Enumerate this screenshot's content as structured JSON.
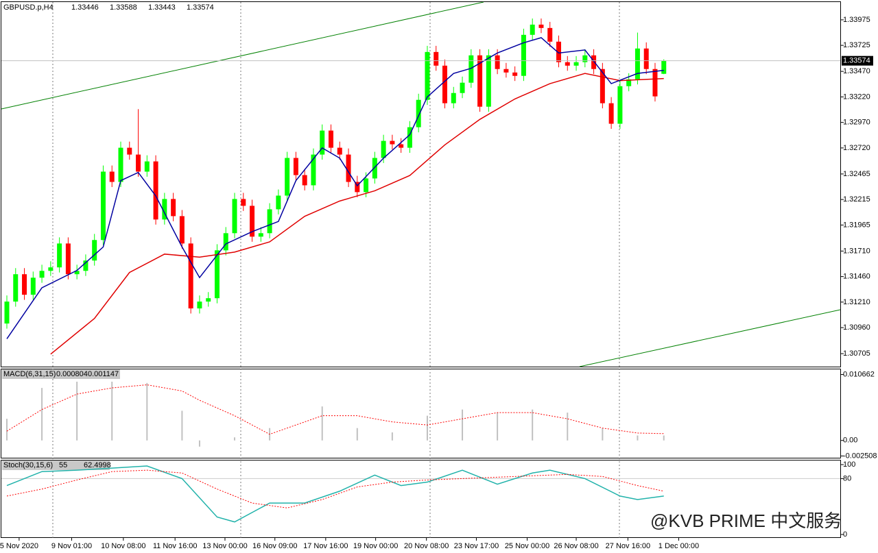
{
  "chart_data": {
    "type": "candlestick",
    "title": "GBPUSD.p,H4",
    "open": [
      1.31,
      1.31215,
      1.31483,
      1.31282,
      1.31449,
      1.31516,
      1.3155,
      1.31784,
      1.31483,
      1.31516,
      1.31617,
      1.31818,
      1.32488,
      1.32387,
      1.32722,
      1.32655,
      1.32488,
      1.32588,
      1.32019,
      1.3222,
      1.32052,
      1.31784,
      1.31148,
      1.31215,
      1.31248,
      1.31717,
      1.31885,
      1.3222,
      1.32153,
      1.31851,
      1.31885,
      1.32119,
      1.32253,
      1.32622,
      1.32454,
      1.32354,
      1.32655,
      1.3289,
      1.32722,
      1.32655,
      1.32387,
      1.32287,
      1.32421,
      1.32622,
      1.32789,
      1.32756,
      1.32722,
      1.32923,
      1.33191,
      1.3366,
      1.33526,
      1.33158,
      1.33258,
      1.33359,
      1.33627,
      1.33124,
      1.33627,
      1.33493,
      1.33459,
      1.33426,
      1.33828,
      1.33928,
      1.33895,
      1.33761,
      1.3356,
      1.33526,
      1.3356,
      1.33627,
      1.33493,
      1.33158,
      1.32957,
      1.33325,
      1.33392,
      1.33694,
      1.33493,
      1.33446
    ],
    "high": [
      1.31275,
      1.31543,
      1.31543,
      1.31509,
      1.31576,
      1.3161,
      1.31844,
      1.31844,
      1.31576,
      1.31677,
      1.31878,
      1.32548,
      1.32548,
      1.32782,
      1.32782,
      1.331,
      1.32648,
      1.32648,
      1.3228,
      1.3228,
      1.32112,
      1.31844,
      1.31275,
      1.31308,
      1.31777,
      1.31945,
      1.3228,
      1.3228,
      1.32213,
      1.31945,
      1.32179,
      1.32313,
      1.32682,
      1.32682,
      1.32514,
      1.32715,
      1.3295,
      1.3295,
      1.32782,
      1.32715,
      1.32447,
      1.32481,
      1.32682,
      1.32849,
      1.32849,
      1.32816,
      1.32983,
      1.33251,
      1.3372,
      1.3372,
      1.33586,
      1.33318,
      1.33419,
      1.33687,
      1.33687,
      1.33687,
      1.33687,
      1.33553,
      1.33519,
      1.33888,
      1.33988,
      1.33988,
      1.33955,
      1.33821,
      1.3362,
      1.3362,
      1.33687,
      1.33687,
      1.33553,
      1.33218,
      1.33385,
      1.33452,
      1.3385,
      1.33754,
      1.33553,
      1.33588
    ],
    "low": [
      1.3095,
      1.31165,
      1.31232,
      1.31232,
      1.31399,
      1.31466,
      1.315,
      1.31433,
      1.31433,
      1.31466,
      1.31567,
      1.31768,
      1.32337,
      1.32337,
      1.32605,
      1.32438,
      1.32438,
      1.31969,
      1.31969,
      1.32002,
      1.31734,
      1.31098,
      1.31098,
      1.31165,
      1.31198,
      1.31667,
      1.31835,
      1.32103,
      1.31801,
      1.31801,
      1.31835,
      1.32069,
      1.32203,
      1.32404,
      1.32304,
      1.32304,
      1.32605,
      1.32672,
      1.32605,
      1.32337,
      1.32237,
      1.32237,
      1.32371,
      1.32572,
      1.32706,
      1.32672,
      1.32672,
      1.32873,
      1.33141,
      1.33476,
      1.33108,
      1.33108,
      1.33208,
      1.33309,
      1.33074,
      1.33074,
      1.33443,
      1.33409,
      1.33376,
      1.33376,
      1.33778,
      1.33845,
      1.33711,
      1.3351,
      1.33476,
      1.33476,
      1.3351,
      1.33443,
      1.33108,
      1.32907,
      1.32907,
      1.33275,
      1.33342,
      1.33443,
      1.33175,
      1.33443
    ],
    "close": [
      1.31215,
      1.31483,
      1.31282,
      1.31449,
      1.31516,
      1.3155,
      1.31784,
      1.31483,
      1.31516,
      1.31617,
      1.31818,
      1.32488,
      1.32387,
      1.32722,
      1.32655,
      1.32488,
      1.32588,
      1.32019,
      1.3222,
      1.32052,
      1.31784,
      1.31148,
      1.31215,
      1.31248,
      1.31717,
      1.31885,
      1.3222,
      1.32153,
      1.31851,
      1.31885,
      1.32119,
      1.32253,
      1.32622,
      1.32454,
      1.32354,
      1.32655,
      1.3289,
      1.32722,
      1.32655,
      1.32387,
      1.32287,
      1.32421,
      1.32622,
      1.32789,
      1.32756,
      1.32722,
      1.32923,
      1.33191,
      1.3366,
      1.33526,
      1.33158,
      1.33258,
      1.33359,
      1.33627,
      1.33124,
      1.33627,
      1.33493,
      1.33459,
      1.33426,
      1.33828,
      1.33928,
      1.33895,
      1.33761,
      1.3356,
      1.33526,
      1.3356,
      1.33627,
      1.33493,
      1.33158,
      1.32957,
      1.33325,
      1.33392,
      1.33694,
      1.33493,
      1.33225,
      1.33574
    ],
    "up_color": "#00ff00",
    "down_color": "#ff0000",
    "ma_fast": {
      "color": "#0000a0",
      "x": [
        0,
        4,
        8,
        11,
        13,
        15,
        17,
        20,
        22,
        25,
        28,
        31,
        33,
        36,
        38,
        40,
        43,
        46,
        48,
        51,
        53,
        56,
        59,
        61,
        63,
        66,
        69,
        72,
        75
      ],
      "values": [
        1.3085,
        1.3135,
        1.3152,
        1.3175,
        1.324,
        1.3248,
        1.3225,
        1.3175,
        1.3145,
        1.3178,
        1.319,
        1.32,
        1.324,
        1.3272,
        1.3262,
        1.3235,
        1.3262,
        1.3285,
        1.3322,
        1.3345,
        1.335,
        1.3365,
        1.3375,
        1.338,
        1.3365,
        1.3368,
        1.3335,
        1.3345,
        1.3348
      ]
    },
    "ma_slow": {
      "color": "#e00000",
      "x": [
        5,
        10,
        14,
        18,
        22,
        26,
        30,
        34,
        38,
        42,
        46,
        50,
        54,
        58,
        62,
        66,
        70,
        75
      ],
      "values": [
        1.307,
        1.3105,
        1.315,
        1.3168,
        1.3165,
        1.317,
        1.318,
        1.3205,
        1.322,
        1.323,
        1.3245,
        1.3275,
        1.33,
        1.332,
        1.3335,
        1.3345,
        1.3338,
        1.334
      ]
    },
    "ylim": [
      1.30578,
      1.34149
    ],
    "yticks": [
      1.33975,
      1.33725,
      {
        "value": 1.3347,
        "label": "1.33470"
      },
      {
        "value": 1.3322,
        "label": "1.33220"
      },
      {
        "value": 1.3297,
        "label": "1.32970"
      },
      {
        "value": 1.3272,
        "label": "1.32720"
      },
      1.32465,
      1.32215,
      1.31965,
      {
        "value": 1.3171,
        "label": "1.31710"
      },
      {
        "value": 1.3146,
        "label": "1.31460"
      },
      {
        "value": 1.3121,
        "label": "1.31210"
      },
      {
        "value": 1.3096,
        "label": "1.30960"
      },
      1.30705
    ],
    "xticks": [
      {
        "value": 1.4,
        "label": "5 Nov 2020"
      },
      {
        "value": 7.4,
        "label": "9 Nov 01:00"
      },
      {
        "value": 13.3,
        "label": "10 Nov 08:00"
      },
      {
        "value": 19.2,
        "label": "11 Nov 16:00"
      },
      {
        "value": 24.9,
        "label": "13 Nov 00:00"
      },
      {
        "value": 30.6,
        "label": "16 Nov 09:00"
      },
      {
        "value": 36.4,
        "label": "17 Nov 16:00"
      },
      {
        "value": 42.1,
        "label": "19 Nov 00:00"
      },
      {
        "value": 47.9,
        "label": "20 Nov 08:00"
      },
      {
        "value": 53.6,
        "label": "23 Nov 17:00"
      },
      {
        "value": 59.4,
        "label": "25 Nov 00:00"
      },
      {
        "value": 65,
        "label": "26 Nov 08:00"
      },
      {
        "value": 70.9,
        "label": "27 Nov 16:00"
      },
      {
        "value": 76.7,
        "label": "1 Dec 00:00"
      }
    ],
    "macd": {
      "name": "MACD(6,31,15)",
      "main_value": 0.000804,
      "signal_value": 0.001147,
      "ylim": [
        -0.0028,
        0.0115
      ],
      "yticks": [
        0.010662,
        {
          "value": 0,
          "label": "0.00"
        },
        -0.002508
      ],
      "x": [
        0,
        4,
        8,
        12,
        16,
        20,
        22,
        26,
        30,
        36,
        40,
        44,
        48,
        52,
        56,
        60,
        64,
        68,
        72,
        75
      ],
      "histogram": [
        0.0035,
        0.0085,
        0.0095,
        0.0095,
        0.0093,
        0.0048,
        -0.001,
        0.0005,
        0.002,
        0.0055,
        0.002,
        0.0013,
        0.004,
        0.005,
        0.0045,
        0.005,
        0.0045,
        0.002,
        0.0008,
        0.0008
      ],
      "signal": [
        0.0015,
        0.005,
        0.0075,
        0.0085,
        0.009,
        0.008,
        0.0065,
        0.004,
        0.001,
        0.004,
        0.004,
        0.003,
        0.0025,
        0.0035,
        0.0045,
        0.0045,
        0.0035,
        0.002,
        0.0012,
        0.0011
      ],
      "hist_color": "#c0c0c0",
      "signal_color": "#ff0000"
    },
    "stoch": {
      "name": "Stoch(30,15,6)",
      "main_value": 55.0,
      "signal_value": 62.4998,
      "ylim": [
        0,
        100
      ],
      "yticks": [
        100,
        80,
        0
      ],
      "x": [
        0,
        4,
        8,
        12,
        16,
        20,
        24,
        26,
        30,
        34,
        38,
        42,
        45,
        48,
        52,
        56,
        60,
        62,
        66,
        70,
        72,
        75
      ],
      "main": [
        70,
        90,
        92,
        95,
        98,
        80,
        25,
        18,
        45,
        45,
        62,
        85,
        70,
        75,
        92,
        72,
        88,
        92,
        80,
        55,
        50,
        55
      ],
      "signal_x": [
        0,
        4,
        8,
        12,
        16,
        20,
        24,
        28,
        32,
        36,
        40,
        44,
        48,
        52,
        56,
        60,
        64,
        68,
        72,
        75
      ],
      "signal": [
        55,
        65,
        78,
        90,
        92,
        88,
        65,
        45,
        38,
        50,
        68,
        75,
        78,
        80,
        82,
        84,
        86,
        83,
        70,
        62
      ],
      "main_color": "#20b2aa",
      "signal_color": "#ff0000"
    },
    "watermark": "@KVB PRIME 中文服务"
  }
}
